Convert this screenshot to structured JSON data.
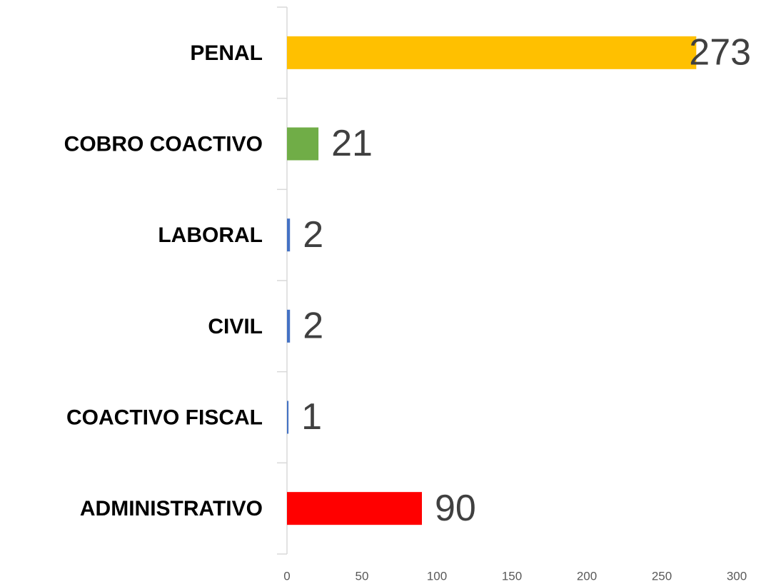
{
  "chart_data": {
    "type": "hbar",
    "categories": [
      "PENAL",
      "COBRO COACTIVO",
      "LABORAL",
      "CIVIL",
      "COACTIVO FISCAL",
      "ADMINISTRATIVO"
    ],
    "values": [
      273,
      21,
      2,
      2,
      1,
      90
    ],
    "colors": [
      "#ffc000",
      "#70ad47",
      "#4472c4",
      "#4472c4",
      "#4472c4",
      "#ff0000"
    ],
    "xlim": [
      0,
      300
    ],
    "xticks": [
      0,
      50,
      100,
      150,
      200,
      250,
      300
    ],
    "grid": false
  }
}
